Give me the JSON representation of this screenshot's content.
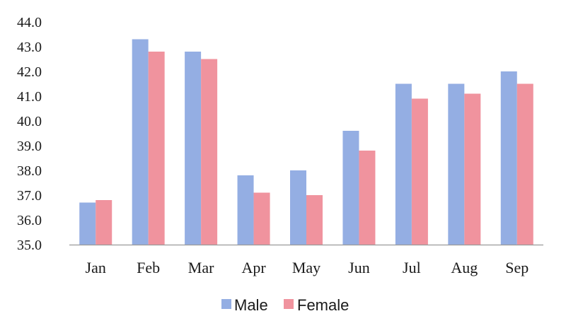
{
  "chart_data": {
    "type": "bar",
    "categories": [
      "Jan",
      "Feb",
      "Mar",
      "Apr",
      "May",
      "Jun",
      "Jul",
      "Aug",
      "Sep"
    ],
    "series": [
      {
        "name": "Male",
        "color": "#94AEE3",
        "values": [
          36.7,
          43.3,
          42.8,
          37.8,
          38.0,
          39.6,
          41.5,
          41.5,
          42.0
        ]
      },
      {
        "name": "Female",
        "color": "#F0939E",
        "values": [
          36.8,
          42.8,
          42.5,
          37.1,
          37.0,
          38.8,
          40.9,
          41.1,
          41.5
        ]
      }
    ],
    "y_ticks": [
      "35.0",
      "36.0",
      "37.0",
      "38.0",
      "39.0",
      "40.0",
      "41.0",
      "42.0",
      "43.0",
      "44.0"
    ],
    "ylim": [
      35.0,
      44.0
    ],
    "grid": false,
    "legend_position": "bottom"
  }
}
